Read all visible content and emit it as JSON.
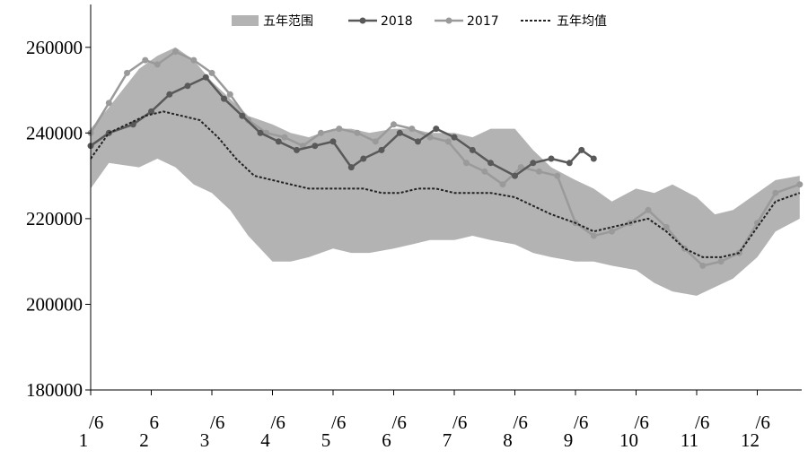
{
  "chart_data": {
    "type": "line",
    "title": "",
    "xlabel": "",
    "ylabel": "",
    "ylim": [
      180000,
      270000
    ],
    "y_ticks": [
      "180000",
      "200000",
      "220000",
      "240000",
      "260000"
    ],
    "x_ticks": [
      "1/6",
      "2/6",
      "3/6",
      "4/6",
      "5/6",
      "6/6",
      "7/6",
      "8/6",
      "9/6",
      "10/6",
      "11/6",
      "12/6"
    ],
    "x_tick_labels": [
      {
        "main": "1",
        "sup": "/6"
      },
      {
        "main": "2",
        "sup": "6"
      },
      {
        "main": "3",
        "sup": "/6"
      },
      {
        "main": "4",
        "sup": "/6"
      },
      {
        "main": "5",
        "sup": "/6"
      },
      {
        "main": "6",
        "sup": "/6"
      },
      {
        "main": "7",
        "sup": "/6"
      },
      {
        "main": "8",
        "sup": "/6"
      },
      {
        "main": "9",
        "sup": "/6"
      },
      {
        "main": "10",
        "sup": "/6"
      },
      {
        "main": "11",
        "sup": "/6"
      },
      {
        "main": "12",
        "sup": "/6"
      }
    ],
    "legend_position": "top",
    "grid": false,
    "band": {
      "name": "五年范围",
      "color": "#b3b3b3",
      "x": [
        1,
        1.3,
        1.8,
        2.1,
        2.4,
        2.7,
        3.0,
        3.3,
        3.6,
        4.0,
        4.3,
        4.6,
        5.0,
        5.3,
        5.6,
        6.0,
        6.3,
        6.6,
        7.0,
        7.3,
        7.6,
        8.0,
        8.3,
        8.6,
        9.0,
        9.3,
        9.6,
        10.0,
        10.3,
        10.6,
        11.0,
        11.3,
        11.6,
        12.0,
        12.3,
        12.7
      ],
      "upper": [
        241000,
        246000,
        255000,
        258000,
        260000,
        257000,
        252000,
        248000,
        244000,
        242000,
        240000,
        239000,
        241000,
        241000,
        240000,
        241000,
        241000,
        240000,
        240000,
        239000,
        241000,
        241000,
        236000,
        232000,
        229000,
        227000,
        224000,
        227000,
        226000,
        228000,
        225000,
        221000,
        222000,
        226000,
        229000,
        230000
      ],
      "lower": [
        227000,
        233000,
        232000,
        234000,
        232000,
        228000,
        226000,
        222000,
        216000,
        210000,
        210000,
        211000,
        213000,
        212000,
        212000,
        213000,
        214000,
        215000,
        215000,
        216000,
        215000,
        214000,
        212000,
        211000,
        210000,
        210000,
        209000,
        208000,
        205000,
        203000,
        202000,
        204000,
        206000,
        211000,
        217000,
        220000
      ]
    },
    "series": [
      {
        "name": "2018",
        "color": "#595959",
        "x": [
          1,
          1.3,
          1.7,
          2.0,
          2.3,
          2.6,
          2.9,
          3.2,
          3.5,
          3.8,
          4.1,
          4.4,
          4.7,
          5.0,
          5.3,
          5.5,
          5.8,
          6.1,
          6.4,
          6.7,
          7.0,
          7.3,
          7.6,
          8.0,
          8.3,
          8.6,
          8.9,
          9.1,
          9.3
        ],
        "values": [
          237000,
          240000,
          242000,
          245000,
          249000,
          251000,
          253000,
          248000,
          244000,
          240000,
          238000,
          236000,
          237000,
          238000,
          232000,
          234000,
          236000,
          240000,
          238000,
          241000,
          239000,
          236000,
          233000,
          230000,
          233000,
          234000,
          233000,
          236000,
          234000
        ]
      },
      {
        "name": "2017",
        "color": "#9a9a9a",
        "x": [
          1,
          1.3,
          1.6,
          1.9,
          2.1,
          2.4,
          2.7,
          3.0,
          3.3,
          3.6,
          3.9,
          4.2,
          4.5,
          4.8,
          5.1,
          5.4,
          5.7,
          6.0,
          6.3,
          6.6,
          6.9,
          7.2,
          7.5,
          7.8,
          8.1,
          8.4,
          8.7,
          9.0,
          9.3,
          9.6,
          9.9,
          10.2,
          10.5,
          10.8,
          11.1,
          11.4,
          11.7,
          12.0,
          12.3,
          12.7
        ],
        "values": [
          240000,
          247000,
          254000,
          257000,
          256000,
          259000,
          257000,
          254000,
          249000,
          243000,
          240000,
          239000,
          237000,
          240000,
          241000,
          240000,
          238000,
          242000,
          241000,
          239000,
          238000,
          233000,
          231000,
          228000,
          232000,
          231000,
          230000,
          219000,
          216000,
          217000,
          219000,
          222000,
          218000,
          213000,
          209000,
          210000,
          212000,
          219000,
          226000,
          228000
        ]
      },
      {
        "name": "五年均值",
        "color": "#222222",
        "x": [
          1,
          1.3,
          1.6,
          1.9,
          2.2,
          2.5,
          2.8,
          3.1,
          3.4,
          3.7,
          4.0,
          4.3,
          4.6,
          4.9,
          5.2,
          5.5,
          5.8,
          6.1,
          6.4,
          6.7,
          7.0,
          7.3,
          7.6,
          8.0,
          8.3,
          8.6,
          9.0,
          9.3,
          9.6,
          9.9,
          10.2,
          10.5,
          10.8,
          11.1,
          11.4,
          11.7,
          12.0,
          12.3,
          12.7
        ],
        "values": [
          234000,
          240000,
          242000,
          244000,
          245000,
          244000,
          243000,
          239000,
          234000,
          230000,
          229000,
          228000,
          227000,
          227000,
          227000,
          227000,
          226000,
          226000,
          227000,
          227000,
          226000,
          226000,
          226000,
          225000,
          223000,
          221000,
          219000,
          217000,
          218000,
          219000,
          220000,
          217000,
          213000,
          211000,
          211000,
          212000,
          218000,
          224000,
          226000
        ]
      }
    ]
  }
}
